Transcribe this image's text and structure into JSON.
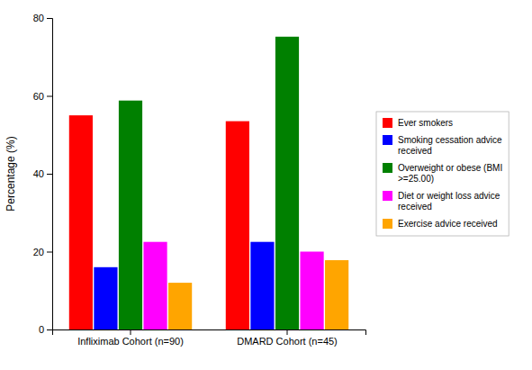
{
  "chart_data": {
    "type": "bar",
    "categories": [
      "Infliximab Cohort (n=90)",
      "DMARD Cohort (n=45)"
    ],
    "series": [
      {
        "name": "Ever smokers",
        "color": "#ff0000",
        "values": [
          55.0,
          53.5
        ]
      },
      {
        "name": "Smoking cessation advice\nreceived",
        "color": "#0000ff",
        "values": [
          16.0,
          22.5
        ]
      },
      {
        "name": "Overweight or obese (BMI\n>=25.00)",
        "color": "#008000",
        "values": [
          58.8,
          75.2
        ]
      },
      {
        "name": "Diet or weight loss advice\nreceived",
        "color": "#ff00ff",
        "values": [
          22.5,
          20.0
        ]
      },
      {
        "name": "Exercise advice received",
        "color": "#ffa500",
        "values": [
          12.0,
          17.8
        ]
      }
    ],
    "ylabel": "Percentage (%)",
    "ylim": [
      0,
      80
    ],
    "yticks": [
      0,
      20,
      40,
      60,
      80
    ],
    "grid": false,
    "legend": "right"
  }
}
